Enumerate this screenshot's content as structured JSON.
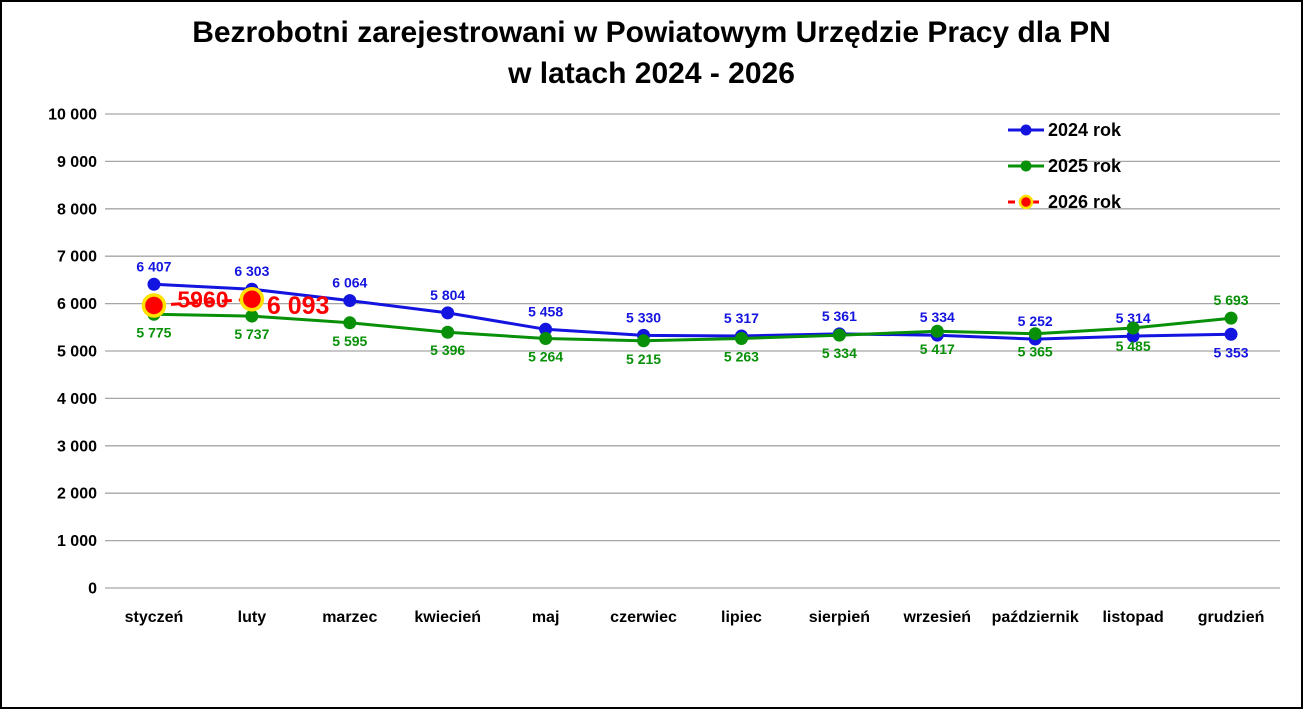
{
  "title": {
    "line1": "Bezrobotni zarejestrowani w Powiatowym Urzędzie Pracy dla PN",
    "line2": "w latach 2024 - 2026"
  },
  "chart_data": {
    "type": "line",
    "title": "Bezrobotni zarejestrowani w Powiatowym Urzędzie Pracy dla PN w latach 2024 - 2026",
    "xlabel": "",
    "ylabel": "",
    "categories": [
      "styczeń",
      "luty",
      "marzec",
      "kwiecień",
      "maj",
      "czerwiec",
      "lipiec",
      "sierpień",
      "wrzesień",
      "październik",
      "listopad",
      "grudzień"
    ],
    "series": [
      {
        "name": "2024 rok",
        "color": "#1414e0",
        "line_style": "solid",
        "marker": "circle",
        "values": [
          6407,
          6303,
          6064,
          5804,
          5458,
          5330,
          5317,
          5361,
          5334,
          5252,
          5314,
          5353
        ],
        "data_labels": [
          "6 407",
          "6 303",
          "6 064",
          "5 804",
          "5 458",
          "5 330",
          "5 317",
          "5 361",
          "5 334",
          "5 252",
          "5 314",
          "5 353"
        ],
        "label_side": [
          "above",
          "above",
          "above",
          "above",
          "above",
          "above",
          "above",
          "above",
          "above",
          "above",
          "above",
          "below"
        ]
      },
      {
        "name": "2025 rok",
        "color": "#089108",
        "line_style": "solid",
        "marker": "circle",
        "values": [
          5775,
          5737,
          5595,
          5396,
          5264,
          5215,
          5263,
          5334,
          5417,
          5365,
          5485,
          5693
        ],
        "data_labels": [
          "5 775",
          "5 737",
          "5 595",
          "5 396",
          "5 264",
          "5 215",
          "5 263",
          "5 334",
          "5 417",
          "5 365",
          "5 485",
          "5 693"
        ],
        "label_side": [
          "below",
          "below",
          "below",
          "below",
          "below",
          "below",
          "below",
          "below",
          "below",
          "below",
          "below",
          "above"
        ]
      },
      {
        "name": "2026 rok",
        "color": "#fe0000",
        "marker_ring_color": "#ffe100",
        "line_style": "dashed",
        "marker": "circle-large",
        "values": [
          5960,
          6093,
          null,
          null,
          null,
          null,
          null,
          null,
          null,
          null,
          null,
          null
        ],
        "data_labels": [
          "5960",
          "6 093"
        ],
        "label_side": [
          "on-line",
          "right"
        ]
      }
    ],
    "ylim": [
      0,
      10000
    ],
    "ytick_step": 1000,
    "ytick_labels": [
      "0",
      "1 000",
      "2 000",
      "3 000",
      "4 000",
      "5 000",
      "6 000",
      "7 000",
      "8 000",
      "9 000",
      "10 000"
    ],
    "grid": true,
    "gridline_color": "#a6a6a6",
    "axis_text_color": "#000000",
    "legend_position": "top-right",
    "legend_entries": [
      "2024 rok",
      "2025 rok",
      "2026 rok"
    ]
  }
}
